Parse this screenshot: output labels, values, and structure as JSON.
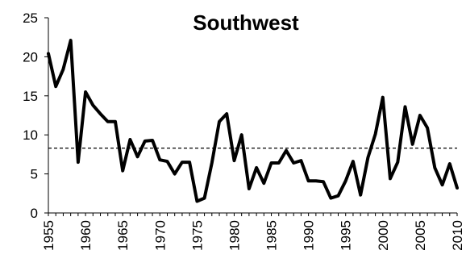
{
  "chart_data": {
    "type": "line",
    "title": "Southwest",
    "xlabel": "",
    "ylabel": "",
    "xlim": [
      1955,
      2010
    ],
    "ylim": [
      0,
      25
    ],
    "yticks": [
      "0",
      "5",
      "10",
      "15",
      "20",
      "25"
    ],
    "xticks": [
      "1955",
      "1960",
      "1965",
      "1970",
      "1975",
      "1980",
      "1985",
      "1990",
      "1995",
      "2000",
      "2005",
      "2010"
    ],
    "grid": false,
    "legend": "none",
    "reference_line": {
      "value": 8.3,
      "style": "dashed"
    },
    "series": [
      {
        "color": "#000000",
        "x": [
          1955,
          1956,
          1957,
          1958,
          1959,
          1960,
          1961,
          1962,
          1963,
          1964,
          1965,
          1966,
          1967,
          1968,
          1969,
          1970,
          1971,
          1972,
          1973,
          1974,
          1975,
          1976,
          1977,
          1978,
          1979,
          1980,
          1981,
          1982,
          1983,
          1984,
          1985,
          1986,
          1987,
          1988,
          1989,
          1990,
          1991,
          1992,
          1993,
          1994,
          1995,
          1996,
          1997,
          1998,
          1999,
          2000,
          2001,
          2002,
          2003,
          2004,
          2005,
          2006,
          2007,
          2008,
          2009,
          2010
        ],
        "values": [
          20.4,
          16.2,
          18.4,
          22.1,
          6.5,
          15.5,
          13.8,
          12.7,
          11.7,
          11.7,
          5.4,
          9.4,
          7.2,
          9.2,
          9.3,
          6.8,
          6.6,
          5.0,
          6.5,
          6.5,
          1.5,
          1.9,
          6.4,
          11.7,
          12.7,
          6.7,
          10.0,
          3.1,
          5.8,
          3.8,
          6.4,
          6.4,
          8.0,
          6.4,
          6.7,
          4.1,
          4.1,
          4.0,
          1.9,
          2.2,
          4.1,
          6.6,
          2.3,
          7.1,
          10.1,
          14.8,
          4.4,
          6.5,
          13.6,
          8.8,
          12.5,
          10.9,
          5.8,
          3.6,
          6.3,
          3.2
        ]
      }
    ]
  }
}
